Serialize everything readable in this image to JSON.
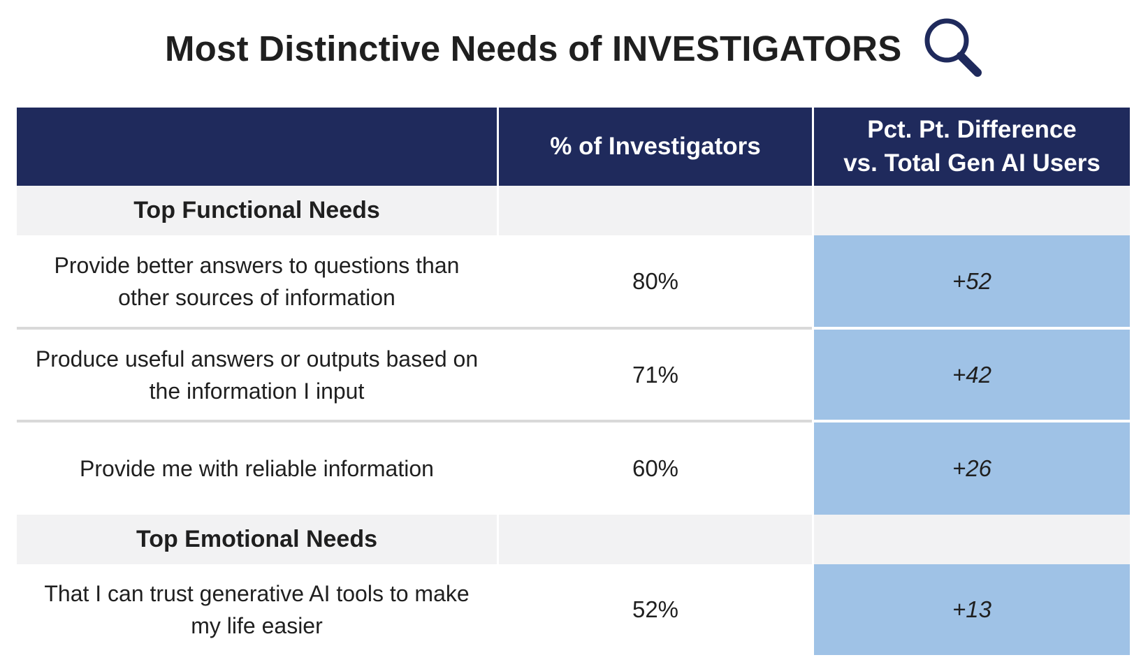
{
  "title": "Most Distinctive Needs of INVESTIGATORS",
  "title_icon": "magnifier-icon",
  "colors": {
    "header_bg": "#1f2a5c",
    "section_bg": "#f2f2f3",
    "difference_bg": "#9fc2e6"
  },
  "table": {
    "headers": [
      "",
      "% of Investigators",
      "Pct. Pt. Difference\nvs. Total Gen AI Users"
    ],
    "sections": [
      {
        "label": "Top Functional Needs",
        "rows": [
          {
            "need": "Provide better answers to questions than other sources of information",
            "pct": "80%",
            "diff": "+52"
          },
          {
            "need": "Produce useful answers or outputs based on the information I input",
            "pct": "71%",
            "diff": "+42"
          },
          {
            "need": "Provide me with reliable information",
            "pct": "60%",
            "diff": "+26"
          }
        ]
      },
      {
        "label": "Top Emotional Needs",
        "rows": [
          {
            "need": "That I can trust generative AI tools to make my life easier",
            "pct": "52%",
            "diff": "+13"
          }
        ]
      }
    ]
  }
}
